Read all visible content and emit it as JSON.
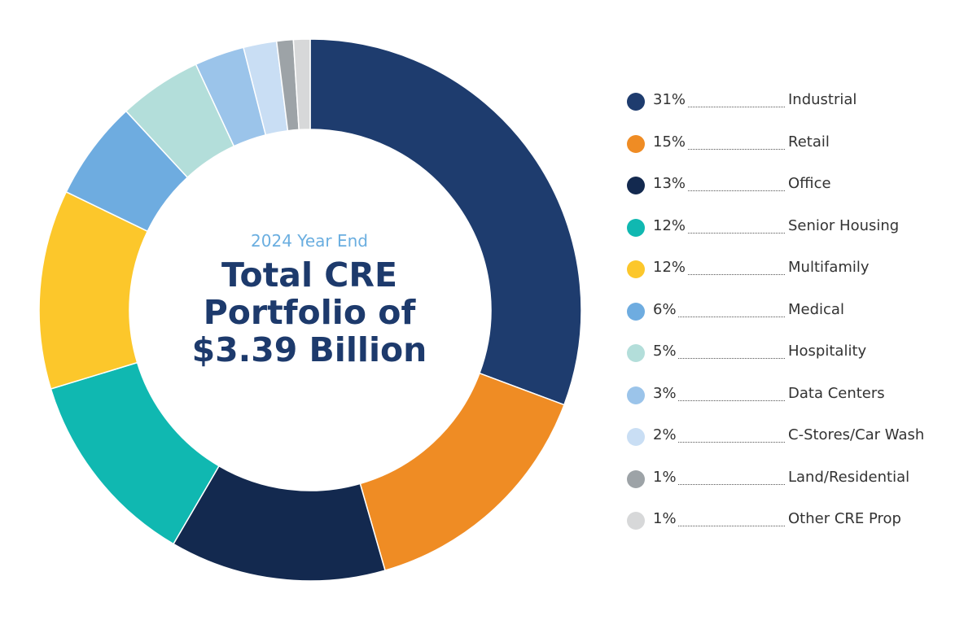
{
  "center": {
    "subtitle": "2024 Year End",
    "title_lines": [
      "Total CRE",
      "Portfolio of",
      "$3.39 Billion"
    ]
  },
  "chart_data": {
    "type": "pie",
    "variant": "donut",
    "title": "Total CRE Portfolio of $3.39 Billion",
    "subtitle": "2024 Year End",
    "legend_position": "right",
    "categories": [
      "Industrial",
      "Retail",
      "Office",
      "Senior Housing",
      "Multifamily",
      "Medical",
      "Hospitality",
      "Data Centers",
      "C-Stores/Car Wash",
      "Land/Residential",
      "Other CRE Prop"
    ],
    "values": [
      31,
      15,
      13,
      12,
      12,
      6,
      5,
      3,
      2,
      1,
      1
    ],
    "labels": [
      "31%",
      "15%",
      "13%",
      "12%",
      "12%",
      "6%",
      "5%",
      "3%",
      "2%",
      "1%",
      "1%"
    ],
    "colors": [
      "#1e3c6e",
      "#ef8c24",
      "#13294f",
      "#10b8b1",
      "#fcc72b",
      "#6eace0",
      "#b3deda",
      "#9bc4ea",
      "#c9def4",
      "#9da3a7",
      "#d7d8d9"
    ]
  }
}
